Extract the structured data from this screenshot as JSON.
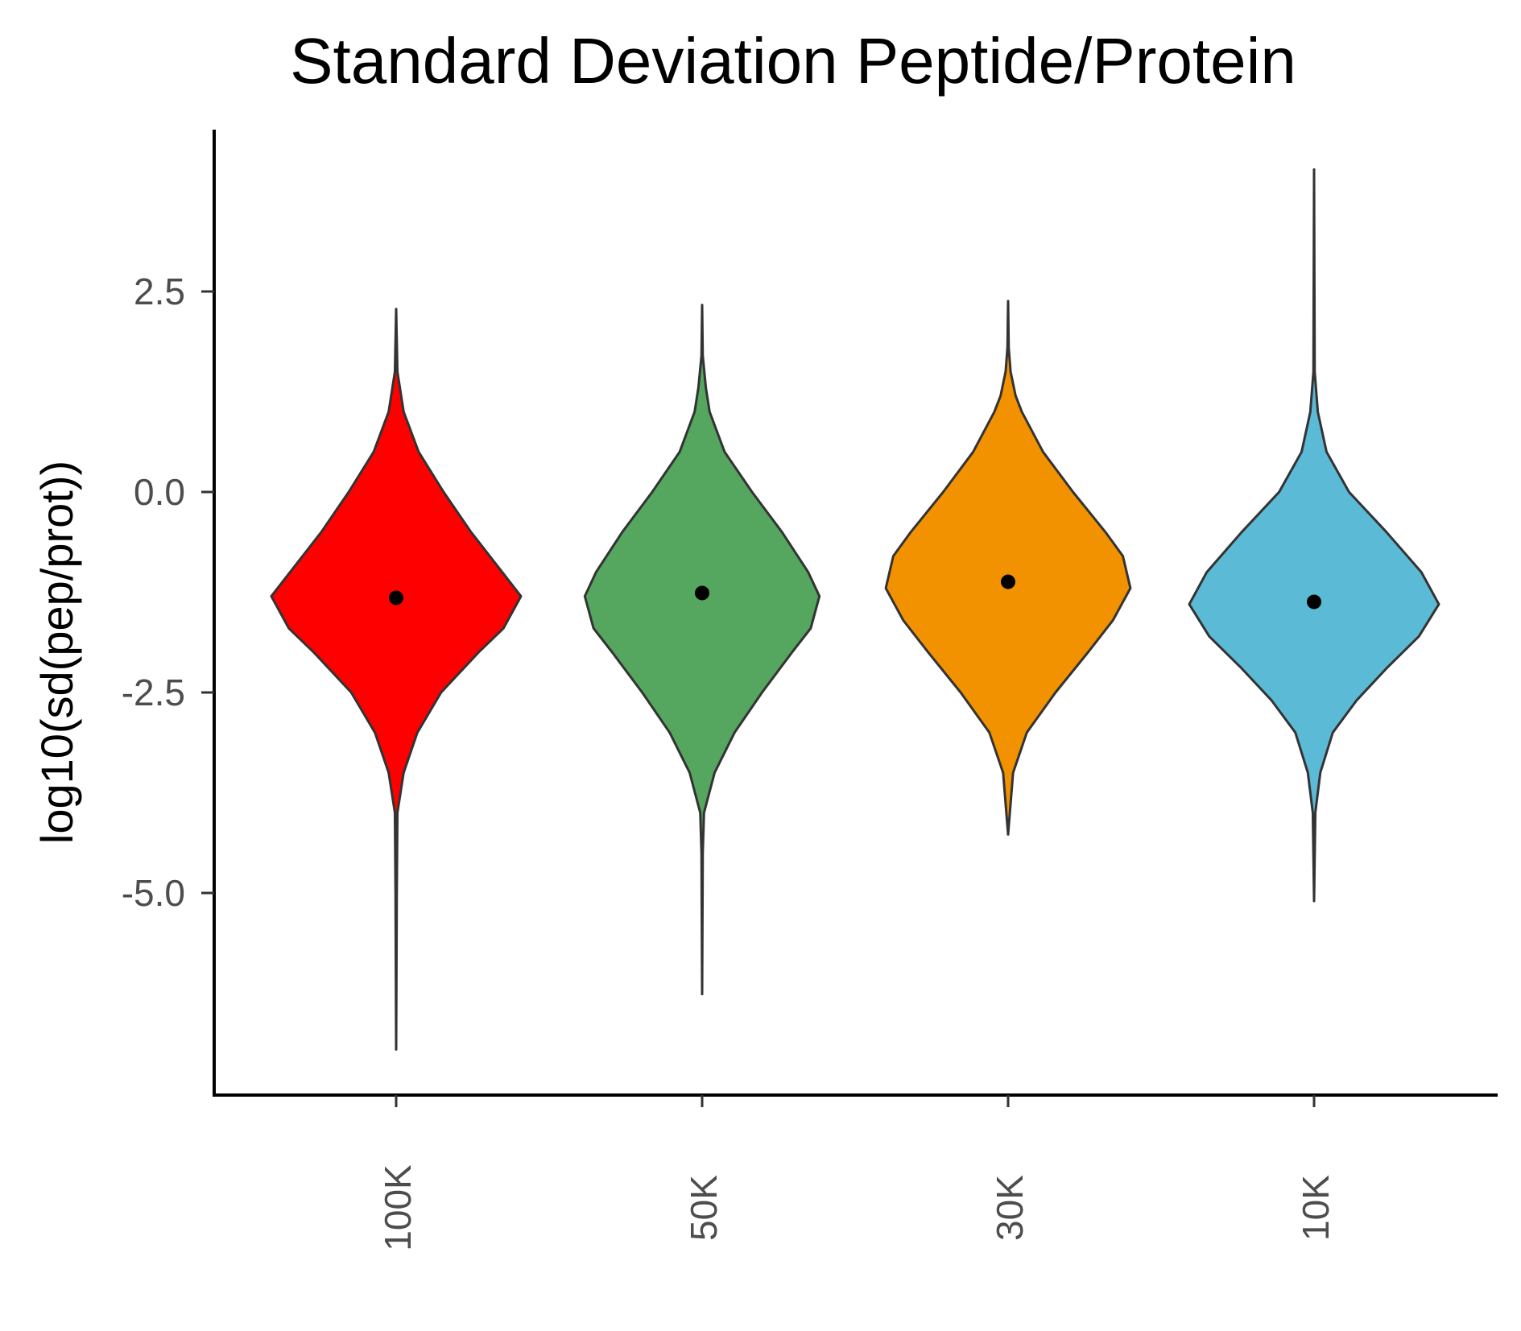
{
  "chart_data": {
    "type": "violin",
    "title": "Standard Deviation Peptide/Protein",
    "xlabel": "",
    "ylabel": "log10(sd(pep/prot))",
    "categories": [
      "100K",
      "50K",
      "30K",
      "10K"
    ],
    "colors": [
      "#ff0000",
      "#55a65f",
      "#f39200",
      "#5bbad5"
    ],
    "yticks": [
      2.5,
      0.0,
      -2.5,
      -5.0
    ],
    "ytick_labels": [
      "2.5",
      "0.0",
      "-2.5",
      "-5.0"
    ],
    "ylim": [
      -7.5,
      4.5
    ],
    "grid": false,
    "legend": "none",
    "points": [
      {
        "category": "100K",
        "value": -1.32
      },
      {
        "category": "50K",
        "value": -1.26
      },
      {
        "category": "30K",
        "value": -1.12
      },
      {
        "category": "10K",
        "value": -1.37
      }
    ],
    "ranges": [
      {
        "category": "100K",
        "min": -6.95,
        "max": 2.28
      },
      {
        "category": "50K",
        "min": -6.26,
        "max": 2.33
      },
      {
        "category": "30K",
        "min": -4.27,
        "max": 2.38
      },
      {
        "category": "10K",
        "min": -5.1,
        "max": 4.02
      }
    ],
    "density_profiles": [
      {
        "category": "100K",
        "y": [
          2.28,
          1.5,
          1.0,
          0.5,
          0.0,
          -0.5,
          -1.0,
          -1.3,
          -1.7,
          -2.0,
          -2.5,
          -3.0,
          -3.5,
          -4.0,
          -5.0,
          -6.95
        ],
        "width": [
          0.0,
          0.01,
          0.06,
          0.18,
          0.38,
          0.6,
          0.85,
          1.0,
          0.86,
          0.66,
          0.36,
          0.17,
          0.06,
          0.01,
          0.005,
          0.0
        ]
      },
      {
        "category": "50K",
        "y": [
          2.33,
          1.7,
          1.3,
          1.0,
          0.5,
          0.0,
          -0.5,
          -1.0,
          -1.3,
          -1.7,
          -2.0,
          -2.5,
          -3.0,
          -3.5,
          -4.0,
          -4.5,
          -6.26
        ],
        "width": [
          0.0,
          0.005,
          0.03,
          0.06,
          0.18,
          0.4,
          0.64,
          0.85,
          0.94,
          0.87,
          0.72,
          0.48,
          0.26,
          0.1,
          0.015,
          0.005,
          0.0
        ]
      },
      {
        "category": "30K",
        "y": [
          2.38,
          1.8,
          1.5,
          1.2,
          1.0,
          0.5,
          0.0,
          -0.5,
          -0.8,
          -1.2,
          -1.6,
          -2.0,
          -2.5,
          -3.0,
          -3.5,
          -4.27
        ],
        "width": [
          0.0,
          0.005,
          0.02,
          0.06,
          0.11,
          0.28,
          0.52,
          0.78,
          0.92,
          0.98,
          0.84,
          0.64,
          0.38,
          0.15,
          0.04,
          0.0
        ]
      },
      {
        "category": "10K",
        "y": [
          4.02,
          1.5,
          1.0,
          0.5,
          0.0,
          -0.5,
          -1.0,
          -1.4,
          -1.8,
          -2.2,
          -2.6,
          -3.0,
          -3.5,
          -4.0,
          -5.1
        ],
        "width": [
          0.0,
          0.005,
          0.03,
          0.1,
          0.28,
          0.58,
          0.86,
          1.0,
          0.84,
          0.58,
          0.34,
          0.15,
          0.05,
          0.01,
          0.0
        ]
      }
    ]
  }
}
